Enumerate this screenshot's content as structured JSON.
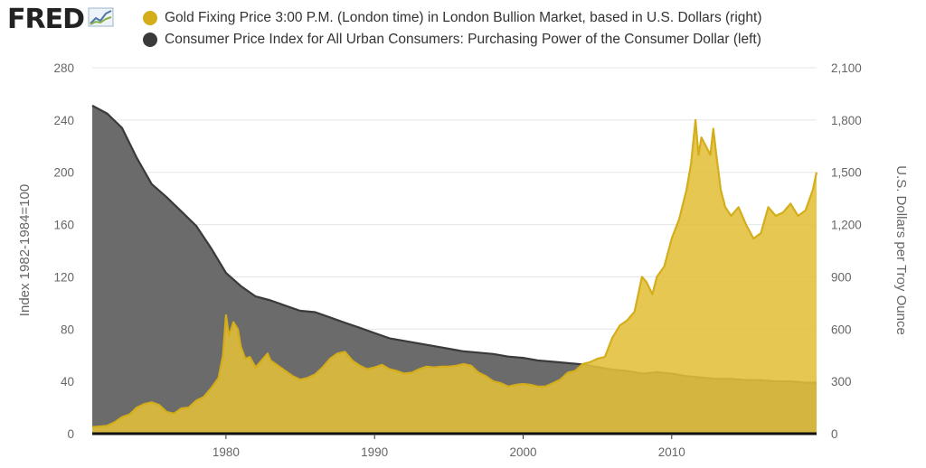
{
  "logo": {
    "text": "FRED",
    "icon": "line-chart-icon"
  },
  "colors": {
    "gold": "#D4AE1A",
    "gold_fill": "#E2BF3A",
    "cpi": "#3A3A3A",
    "cpi_fill": "#6B6B6B",
    "grid": "#E5E5E5"
  },
  "chart_data": {
    "type": "area",
    "x_ticks": [
      "1980",
      "1990",
      "2000",
      "2010"
    ],
    "xlim": [
      1971,
      2019.75
    ],
    "series": [
      {
        "name": "Gold Fixing Price 3:00 P.M. (London time) in London Bullion Market, based in U.S. Dollars (right)",
        "axis": "right",
        "x": [
          1971,
          1972,
          1972.5,
          1973,
          1973.5,
          1974,
          1974.5,
          1975,
          1975.5,
          1976,
          1976.5,
          1977,
          1977.5,
          1978,
          1978.5,
          1979,
          1979.5,
          1979.8,
          1980,
          1980.2,
          1980.5,
          1980.8,
          1981,
          1981.3,
          1981.6,
          1982,
          1982.4,
          1982.8,
          1983,
          1983.5,
          1984,
          1984.5,
          1985,
          1985.5,
          1986,
          1986.5,
          1987,
          1987.5,
          1988,
          1988.5,
          1989,
          1989.5,
          1990,
          1990.5,
          1991,
          1991.5,
          1992,
          1992.5,
          1993,
          1993.5,
          1994,
          1994.5,
          1995,
          1995.5,
          1996,
          1996.5,
          1997,
          1997.5,
          1998,
          1998.5,
          1999,
          1999.5,
          2000,
          2000.5,
          2001,
          2001.5,
          2002,
          2002.5,
          2003,
          2003.5,
          2004,
          2004.5,
          2005,
          2005.5,
          2006,
          2006.5,
          2007,
          2007.5,
          2008,
          2008.3,
          2008.7,
          2009,
          2009.5,
          2010,
          2010.5,
          2011,
          2011.3,
          2011.6,
          2011.8,
          2012,
          2012.3,
          2012.6,
          2012.8,
          2013,
          2013.3,
          2013.6,
          2014,
          2014.5,
          2015,
          2015.5,
          2016,
          2016.5,
          2017,
          2017.5,
          2018,
          2018.5,
          2019,
          2019.5,
          2019.75
        ],
        "values": [
          38,
          45,
          65,
          95,
          110,
          150,
          170,
          180,
          165,
          125,
          115,
          145,
          150,
          190,
          210,
          260,
          320,
          450,
          680,
          560,
          640,
          600,
          500,
          430,
          440,
          380,
          420,
          460,
          420,
          390,
          360,
          330,
          310,
          320,
          340,
          380,
          430,
          460,
          470,
          420,
          390,
          370,
          380,
          395,
          370,
          360,
          345,
          350,
          370,
          385,
          380,
          385,
          385,
          390,
          400,
          390,
          350,
          330,
          300,
          290,
          270,
          280,
          285,
          280,
          270,
          270,
          290,
          310,
          350,
          360,
          400,
          410,
          430,
          440,
          550,
          620,
          650,
          700,
          900,
          870,
          800,
          900,
          960,
          1120,
          1230,
          1400,
          1550,
          1800,
          1600,
          1700,
          1650,
          1600,
          1750,
          1600,
          1400,
          1300,
          1250,
          1300,
          1200,
          1120,
          1150,
          1300,
          1250,
          1270,
          1320,
          1250,
          1280,
          1400,
          1500
        ]
      },
      {
        "name": "Consumer Price Index for All Urban Consumers: Purchasing Power of the Consumer Dollar (left)",
        "axis": "left",
        "x": [
          1971,
          1972,
          1973,
          1974,
          1975,
          1976,
          1977,
          1978,
          1979,
          1980,
          1981,
          1982,
          1983,
          1984,
          1985,
          1986,
          1987,
          1988,
          1989,
          1990,
          1991,
          1992,
          1993,
          1994,
          1995,
          1996,
          1997,
          1998,
          1999,
          2000,
          2001,
          2002,
          2003,
          2004,
          2005,
          2006,
          2007,
          2008,
          2009,
          2010,
          2011,
          2012,
          2013,
          2014,
          2015,
          2016,
          2017,
          2018,
          2019,
          2019.75
        ],
        "values": [
          251,
          245,
          234,
          211,
          191,
          181,
          170,
          159,
          142,
          123,
          113,
          105,
          102,
          98,
          94,
          93,
          89,
          85,
          81,
          77,
          73,
          71,
          69,
          67,
          65,
          63,
          62,
          61,
          59,
          58,
          56,
          55,
          54,
          53,
          51,
          49,
          48,
          46,
          47,
          46,
          44,
          43,
          42,
          42,
          41,
          41,
          40,
          40,
          39,
          39
        ]
      }
    ],
    "left_axis": {
      "label": "Index 1982-1984=100",
      "ticks": [
        "0",
        "40",
        "80",
        "120",
        "160",
        "200",
        "240",
        "280"
      ],
      "range": [
        0,
        280
      ]
    },
    "right_axis": {
      "label": "U.S. Dollars per Troy Ounce",
      "ticks": [
        "0",
        "300",
        "600",
        "900",
        "1,200",
        "1,500",
        "1,800",
        "2,100"
      ],
      "range": [
        0,
        2100
      ]
    },
    "grid": true,
    "legend_position": "top"
  }
}
